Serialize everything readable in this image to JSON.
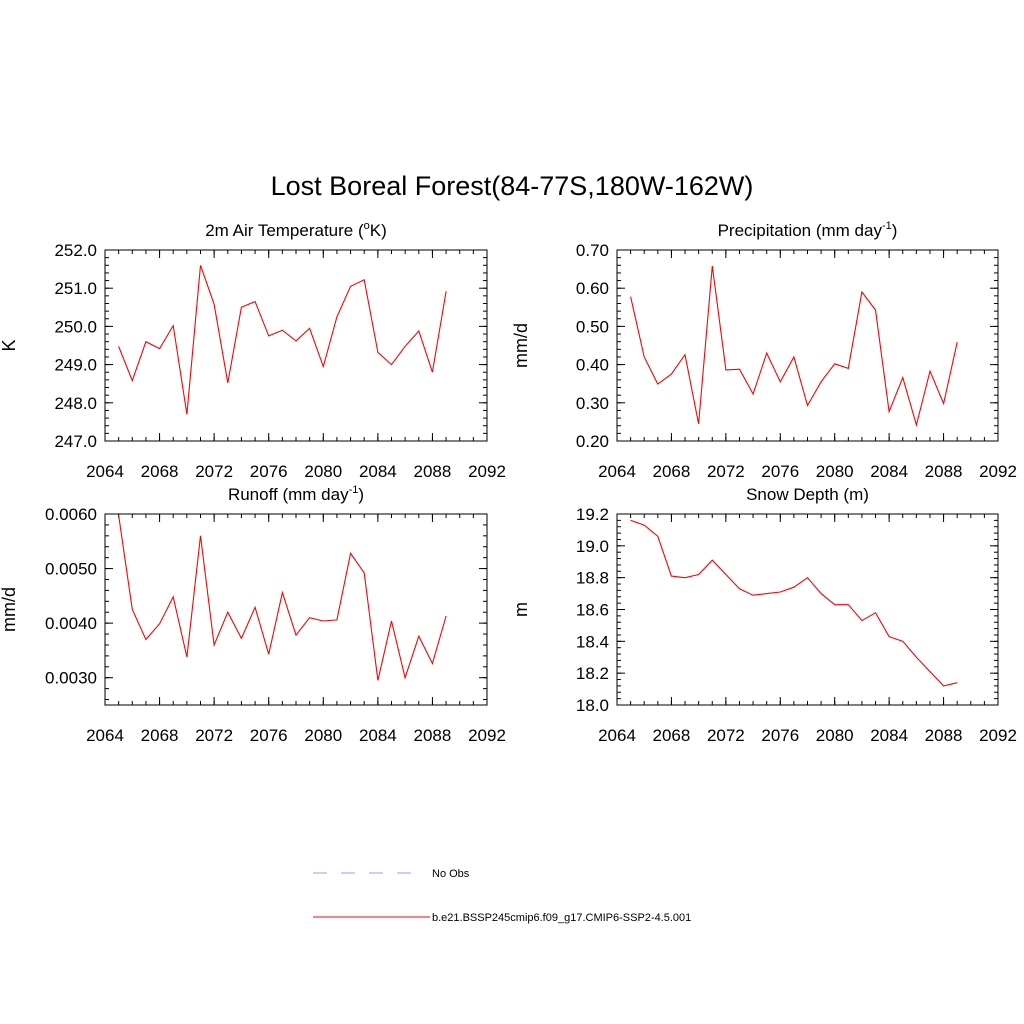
{
  "figure": {
    "title": "Lost Boreal Forest(84-77S,180W-162W)"
  },
  "legend": {
    "placement": "bottom-center",
    "entries": [
      {
        "label": "No Obs",
        "color": "#9999ff",
        "style": "dashed"
      },
      {
        "label": "b.e21.BSSP245cmip6.f09_g17.CMIP6-SSP2-4.5.001",
        "color": "#ff0000",
        "style": "solid"
      }
    ]
  },
  "chart_data": [
    {
      "type": "line",
      "title": "2m Air Temperature (",
      "title_sup": "o",
      "title_after": "K)",
      "ylabel": "K",
      "xlim": [
        2064,
        2092
      ],
      "ylim": [
        247.0,
        252.0
      ],
      "xticks": [
        "2064",
        "2068",
        "2072",
        "2076",
        "2080",
        "2084",
        "2088",
        "2092"
      ],
      "xtick_values": [
        2064,
        2068,
        2072,
        2076,
        2080,
        2084,
        2088,
        2092
      ],
      "yticks": [
        "247.0",
        "248.0",
        "249.0",
        "250.0",
        "251.0",
        "252.0"
      ],
      "ytick_values": [
        247.0,
        248.0,
        249.0,
        250.0,
        251.0,
        252.0
      ],
      "color": "#ff0000",
      "x": [
        2065,
        2066,
        2067,
        2068,
        2069,
        2070,
        2071,
        2072,
        2073,
        2074,
        2075,
        2076,
        2077,
        2078,
        2079,
        2080,
        2081,
        2082,
        2083,
        2084,
        2085,
        2086,
        2087,
        2088,
        2089
      ],
      "y": [
        249.48,
        248.58,
        249.6,
        249.42,
        250.02,
        247.7,
        251.6,
        250.58,
        248.52,
        250.5,
        250.65,
        249.75,
        249.9,
        249.62,
        249.95,
        248.95,
        250.25,
        251.05,
        251.22,
        249.32,
        249.0,
        249.48,
        249.88,
        248.8,
        250.92
      ]
    },
    {
      "type": "line",
      "title": "Precipitation (mm day",
      "title_sup": "-1",
      "title_after": ")",
      "ylabel": "mm/d",
      "xlim": [
        2064,
        2092
      ],
      "ylim": [
        0.2,
        0.7
      ],
      "xticks": [
        "2064",
        "2068",
        "2072",
        "2076",
        "2080",
        "2084",
        "2088",
        "2092"
      ],
      "xtick_values": [
        2064,
        2068,
        2072,
        2076,
        2080,
        2084,
        2088,
        2092
      ],
      "yticks": [
        "0.20",
        "0.30",
        "0.40",
        "0.50",
        "0.60",
        "0.70"
      ],
      "ytick_values": [
        0.2,
        0.3,
        0.4,
        0.5,
        0.6,
        0.7
      ],
      "color": "#ff0000",
      "x": [
        2065,
        2066,
        2067,
        2068,
        2069,
        2070,
        2071,
        2072,
        2073,
        2074,
        2075,
        2076,
        2077,
        2078,
        2079,
        2080,
        2081,
        2082,
        2083,
        2084,
        2085,
        2086,
        2087,
        2088,
        2089
      ],
      "y": [
        0.578,
        0.42,
        0.349,
        0.375,
        0.426,
        0.245,
        0.658,
        0.386,
        0.388,
        0.323,
        0.43,
        0.355,
        0.42,
        0.293,
        0.355,
        0.402,
        0.39,
        0.59,
        0.543,
        0.277,
        0.366,
        0.242,
        0.383,
        0.298,
        0.459
      ]
    },
    {
      "type": "line",
      "title": "Runoff (mm day",
      "title_sup": "-1",
      "title_after": ")",
      "ylabel": "mm/d",
      "xlim": [
        2064,
        2092
      ],
      "ylim": [
        0.0025,
        0.006
      ],
      "xticks": [
        "2064",
        "2068",
        "2072",
        "2076",
        "2080",
        "2084",
        "2088",
        "2092"
      ],
      "xtick_values": [
        2064,
        2068,
        2072,
        2076,
        2080,
        2084,
        2088,
        2092
      ],
      "yticks": [
        "0.0030",
        "0.0040",
        "0.0050",
        "0.0060"
      ],
      "ytick_values": [
        0.003,
        0.004,
        0.005,
        0.006
      ],
      "color": "#ff0000",
      "x": [
        2065,
        2066,
        2067,
        2068,
        2069,
        2070,
        2071,
        2072,
        2073,
        2074,
        2075,
        2076,
        2077,
        2078,
        2079,
        2080,
        2081,
        2082,
        2083,
        2084,
        2085,
        2086,
        2087,
        2088,
        2089
      ],
      "y": [
        0.00598,
        0.00425,
        0.0037,
        0.00399,
        0.00448,
        0.00338,
        0.0056,
        0.0036,
        0.0042,
        0.00372,
        0.00429,
        0.00343,
        0.00456,
        0.00378,
        0.0041,
        0.00404,
        0.00406,
        0.00528,
        0.00492,
        0.00295,
        0.00404,
        0.003,
        0.00376,
        0.00326,
        0.00413
      ]
    },
    {
      "type": "line",
      "title": "Snow Depth (m)",
      "title_sup": "",
      "title_after": "",
      "ylabel": "m",
      "xlim": [
        2064,
        2092
      ],
      "ylim": [
        18.0,
        19.2
      ],
      "xticks": [
        "2064",
        "2068",
        "2072",
        "2076",
        "2080",
        "2084",
        "2088",
        "2092"
      ],
      "xtick_values": [
        2064,
        2068,
        2072,
        2076,
        2080,
        2084,
        2088,
        2092
      ],
      "yticks": [
        "18.0",
        "18.2",
        "18.4",
        "18.6",
        "18.8",
        "19.0",
        "19.2"
      ],
      "ytick_values": [
        18.0,
        18.2,
        18.4,
        18.6,
        18.8,
        19.0,
        19.2
      ],
      "color": "#ff0000",
      "x": [
        2065,
        2066,
        2067,
        2068,
        2069,
        2070,
        2071,
        2072,
        2073,
        2074,
        2075,
        2076,
        2077,
        2078,
        2079,
        2080,
        2081,
        2082,
        2083,
        2084,
        2085,
        2086,
        2087,
        2088,
        2089
      ],
      "y": [
        19.16,
        19.13,
        19.06,
        18.81,
        18.8,
        18.82,
        18.91,
        18.82,
        18.73,
        18.69,
        18.7,
        18.71,
        18.74,
        18.8,
        18.7,
        18.63,
        18.63,
        18.53,
        18.58,
        18.43,
        18.4,
        18.3,
        18.21,
        18.12,
        18.14
      ]
    }
  ]
}
